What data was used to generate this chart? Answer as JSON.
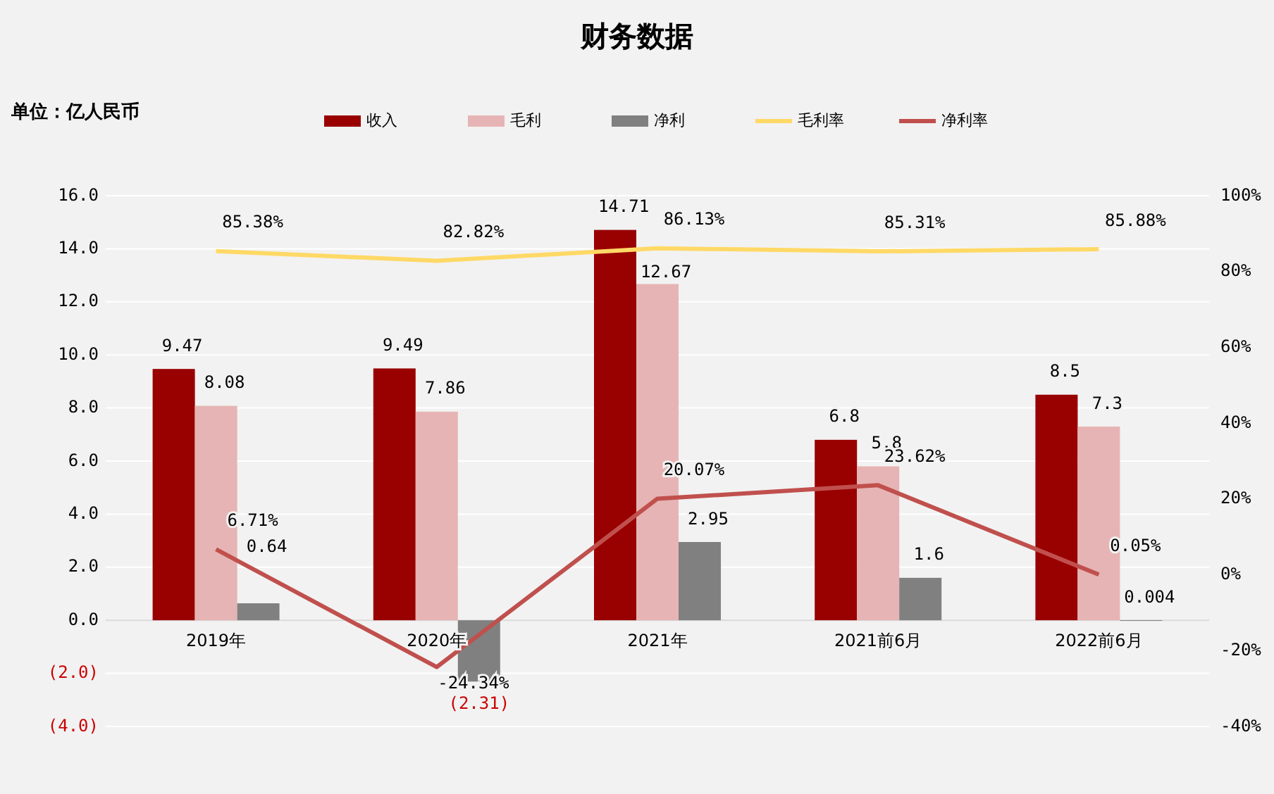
{
  "chart_data": {
    "type": "bar",
    "title": "财务数据",
    "subtitle": "单位：亿人民币",
    "categories": [
      "2019年",
      "2020年",
      "2021年",
      "2021前6月",
      "2022前6月"
    ],
    "series": [
      {
        "name": "收入",
        "color": "#990000",
        "values": [
          9.47,
          9.49,
          14.71,
          6.8,
          8.5
        ],
        "value_labels": [
          "9.47",
          "9.49",
          "14.71",
          "6.8",
          "8.5"
        ]
      },
      {
        "name": "毛利",
        "color": "#e6b4b4",
        "values": [
          8.08,
          7.86,
          12.67,
          5.8,
          7.3
        ],
        "value_labels": [
          "8.08",
          "7.86",
          "12.67",
          "5.8",
          "7.3"
        ]
      },
      {
        "name": "净利",
        "color": "#808080",
        "values": [
          0.64,
          -2.31,
          2.95,
          1.6,
          0.004
        ],
        "value_labels": [
          "0.64",
          "(2.31)",
          "2.95",
          "1.6",
          "0.004"
        ]
      },
      {
        "name": "毛利率",
        "type": "line",
        "axis": "y2",
        "color": "#ffd966",
        "values": [
          85.38,
          82.82,
          86.13,
          85.31,
          85.88
        ],
        "value_labels": [
          "85.38%",
          "82.82%",
          "86.13%",
          "85.31%",
          "85.88%"
        ]
      },
      {
        "name": "净利率",
        "type": "line",
        "axis": "y2",
        "color": "#c0504d",
        "values": [
          6.71,
          -24.34,
          20.07,
          23.62,
          0.05
        ],
        "value_labels": [
          "6.71%",
          "-24.34%",
          "20.07%",
          "23.62%",
          "0.05%"
        ]
      }
    ],
    "ylim": [
      -4,
      16
    ],
    "yticks": [
      {
        "value": -4,
        "label": "(4.0)"
      },
      {
        "value": -2,
        "label": "(2.0)"
      },
      {
        "value": 0,
        "label": "0.0"
      },
      {
        "value": 2,
        "label": "2.0"
      },
      {
        "value": 4,
        "label": "4.0"
      },
      {
        "value": 6,
        "label": "6.0"
      },
      {
        "value": 8,
        "label": "8.0"
      },
      {
        "value": 10,
        "label": "10.0"
      },
      {
        "value": 12,
        "label": "12.0"
      },
      {
        "value": 14,
        "label": "14.0"
      },
      {
        "value": 16,
        "label": "16.0"
      }
    ],
    "y2lim": [
      -40,
      100
    ],
    "y2ticks": [
      {
        "value": -40,
        "label": "-40%"
      },
      {
        "value": -20,
        "label": "-20%"
      },
      {
        "value": 0,
        "label": "0%"
      },
      {
        "value": 20,
        "label": "20%"
      },
      {
        "value": 40,
        "label": "40%"
      },
      {
        "value": 60,
        "label": "60%"
      },
      {
        "value": 80,
        "label": "80%"
      },
      {
        "value": 100,
        "label": "100%"
      }
    ],
    "grid": "y",
    "legend": "top",
    "marker": "none",
    "line_style": "solid"
  }
}
